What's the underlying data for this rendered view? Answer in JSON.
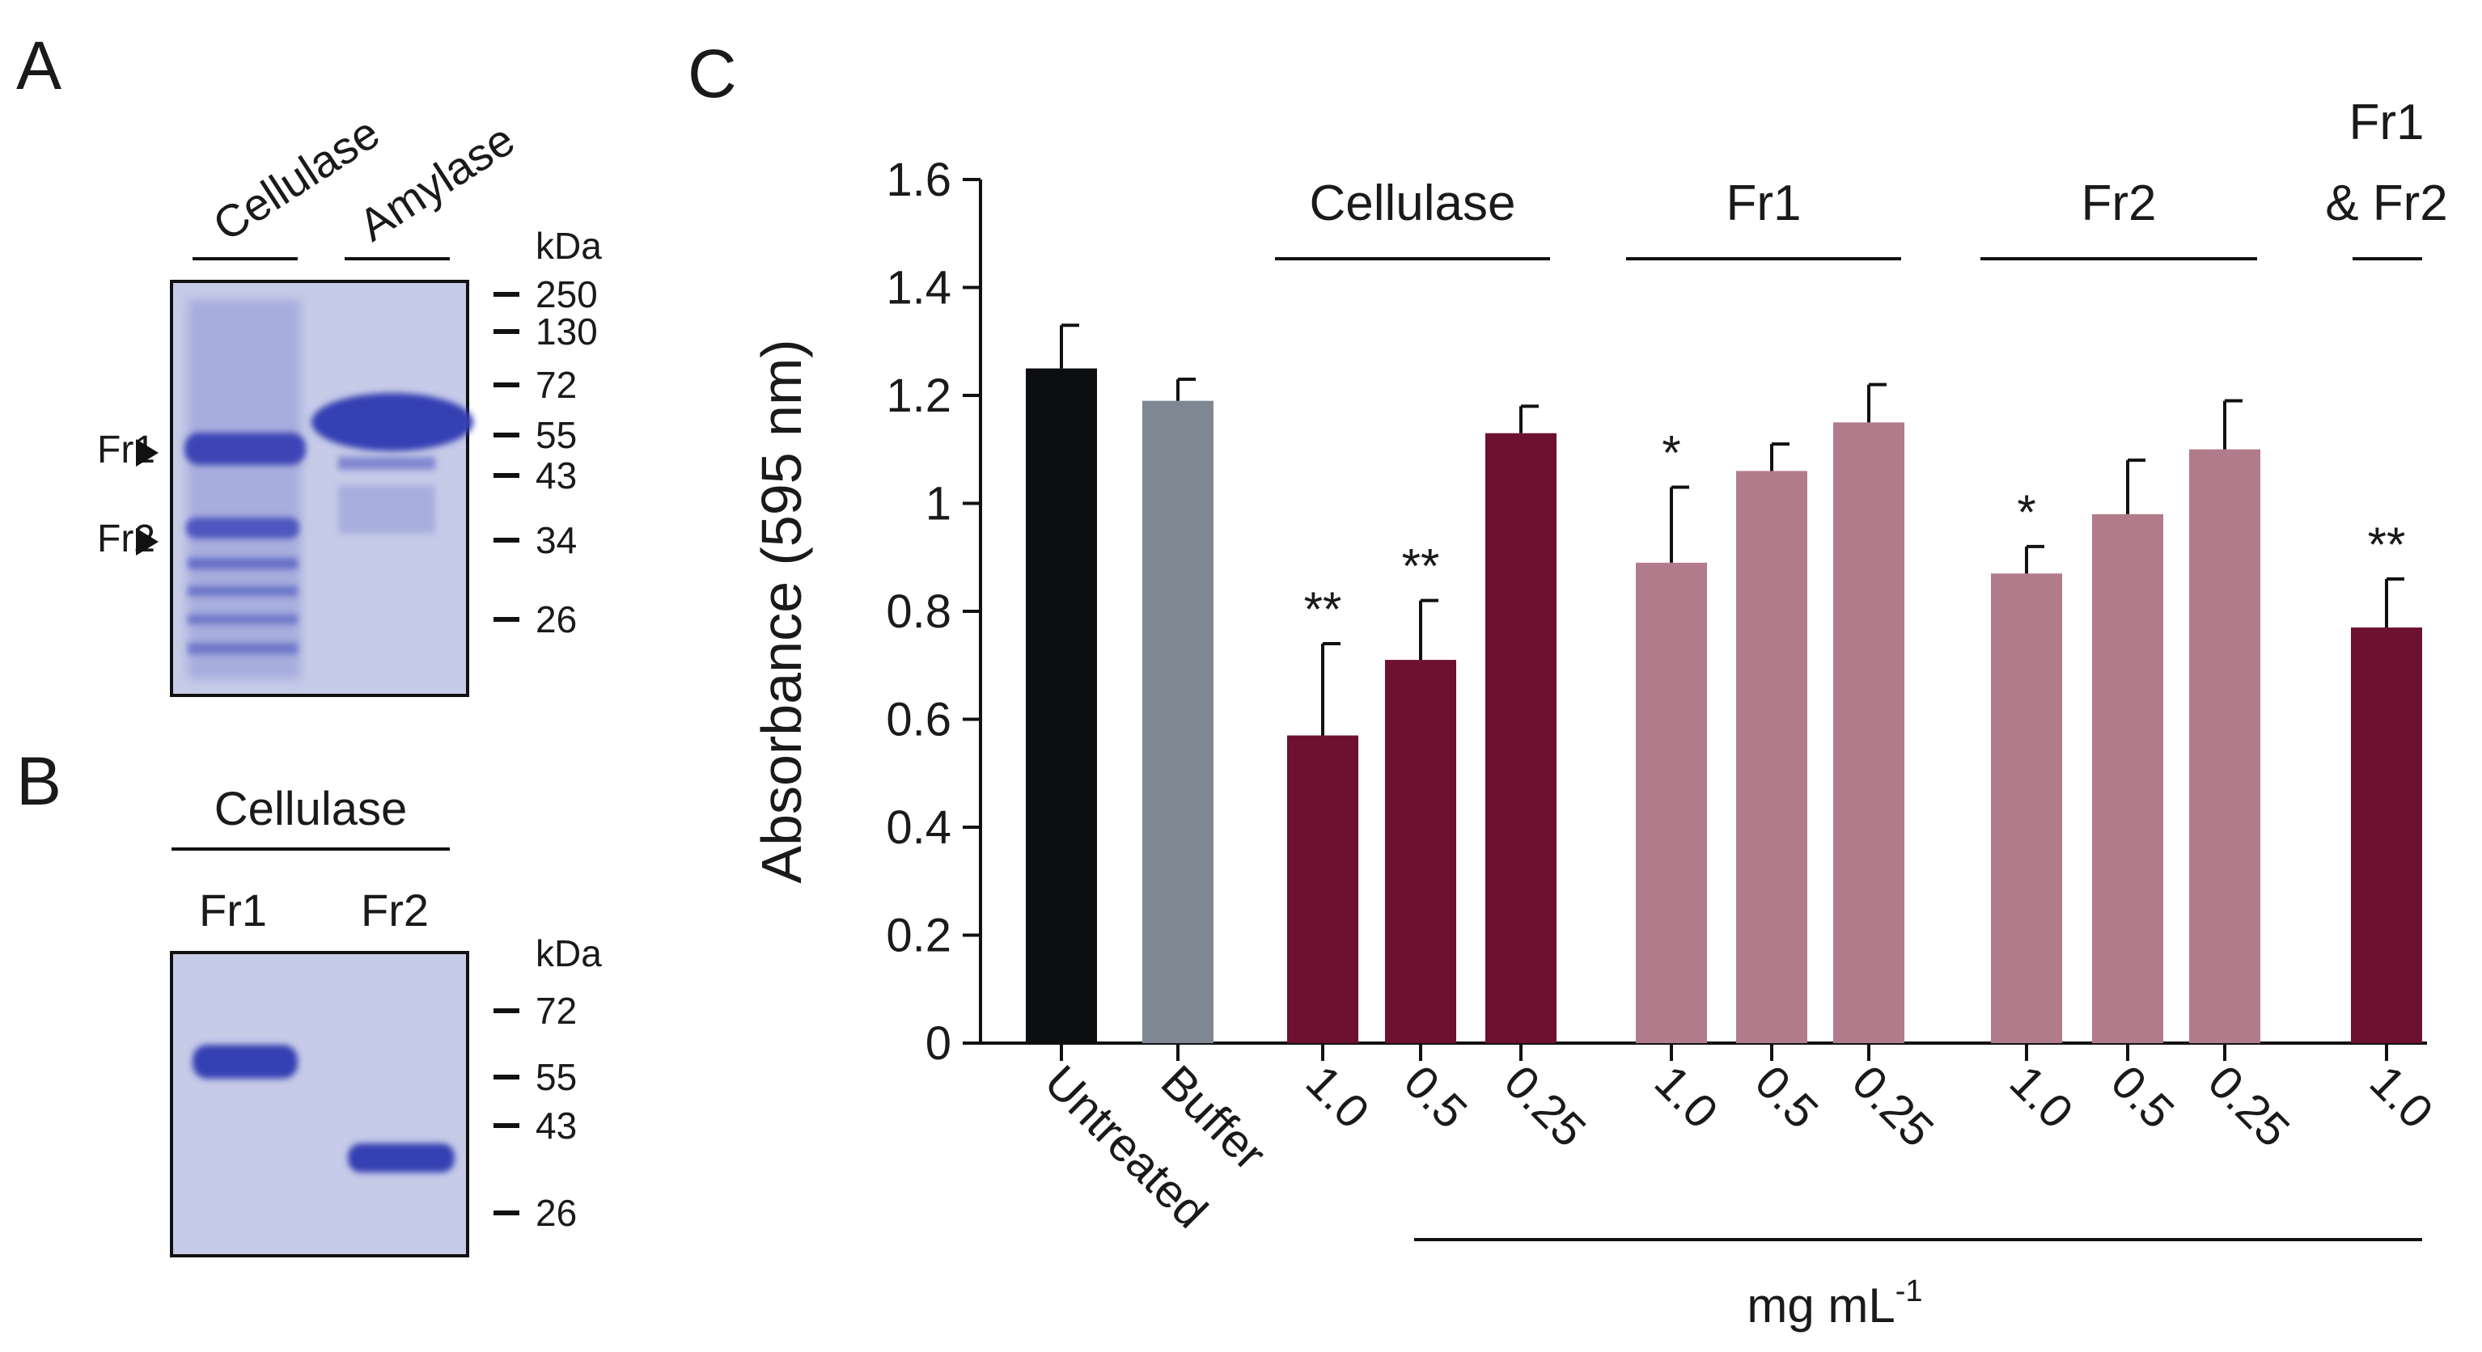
{
  "panels": {
    "A": {
      "letter": "A",
      "lanes": [
        "Cellulase",
        "Amylase"
      ],
      "markers": [
        "250",
        "130",
        "72",
        "55",
        "43",
        "34",
        "26"
      ],
      "kda": "kDa",
      "bands": [
        "Fr1",
        "Fr2"
      ]
    },
    "B": {
      "letter": "B",
      "title": "Cellulase",
      "lanes": [
        "Fr1",
        "Fr2"
      ],
      "markers": [
        "72",
        "55",
        "43",
        "26"
      ],
      "kda": "kDa"
    },
    "C": {
      "letter": "C"
    }
  },
  "colors": {
    "untreated": "#0d0e10",
    "buffer": "#7f8892",
    "cellulase": "#6d1130",
    "fraction": "#b27b8b",
    "combo": "#6d1130",
    "gel_bg": "#c6cbe8",
    "gel_band": "#3d45b5"
  },
  "chart_data": {
    "type": "bar",
    "ylabel": "Absorbance (595 nm)",
    "xlabel": "mg mL",
    "xlabel_sup": "-1",
    "ylim": [
      0,
      1.6
    ],
    "yticks": [
      "0",
      "0.2",
      "0.4",
      "0.6",
      "0.8",
      "1",
      "1.2",
      "1.4",
      "1.6"
    ],
    "groups": [
      {
        "label": "Cellulase"
      },
      {
        "label": "Fr1"
      },
      {
        "label": "Fr2"
      },
      {
        "label": "Fr1",
        "label2": "& Fr2"
      }
    ],
    "bars": [
      {
        "category": "Untreated",
        "value": 1.25,
        "error": 0.08,
        "sig": "",
        "color_key": "untreated"
      },
      {
        "category": "Buffer",
        "value": 1.19,
        "error": 0.04,
        "sig": "",
        "color_key": "buffer"
      },
      {
        "category": "1.0",
        "value": 0.57,
        "error": 0.17,
        "sig": "**",
        "color_key": "cellulase"
      },
      {
        "category": "0.5",
        "value": 0.71,
        "error": 0.11,
        "sig": "**",
        "color_key": "cellulase"
      },
      {
        "category": "0.25",
        "value": 1.13,
        "error": 0.05,
        "sig": "",
        "color_key": "cellulase"
      },
      {
        "category": "1.0",
        "value": 0.89,
        "error": 0.14,
        "sig": "*",
        "color_key": "fraction"
      },
      {
        "category": "0.5",
        "value": 1.06,
        "error": 0.05,
        "sig": "",
        "color_key": "fraction"
      },
      {
        "category": "0.25",
        "value": 1.15,
        "error": 0.07,
        "sig": "",
        "color_key": "fraction"
      },
      {
        "category": "1.0",
        "value": 0.87,
        "error": 0.05,
        "sig": "*",
        "color_key": "fraction"
      },
      {
        "category": "0.5",
        "value": 0.98,
        "error": 0.1,
        "sig": "",
        "color_key": "fraction"
      },
      {
        "category": "0.25",
        "value": 1.1,
        "error": 0.09,
        "sig": "",
        "color_key": "fraction"
      },
      {
        "category": "1.0",
        "value": 0.77,
        "error": 0.09,
        "sig": "**",
        "color_key": "combo"
      }
    ]
  }
}
